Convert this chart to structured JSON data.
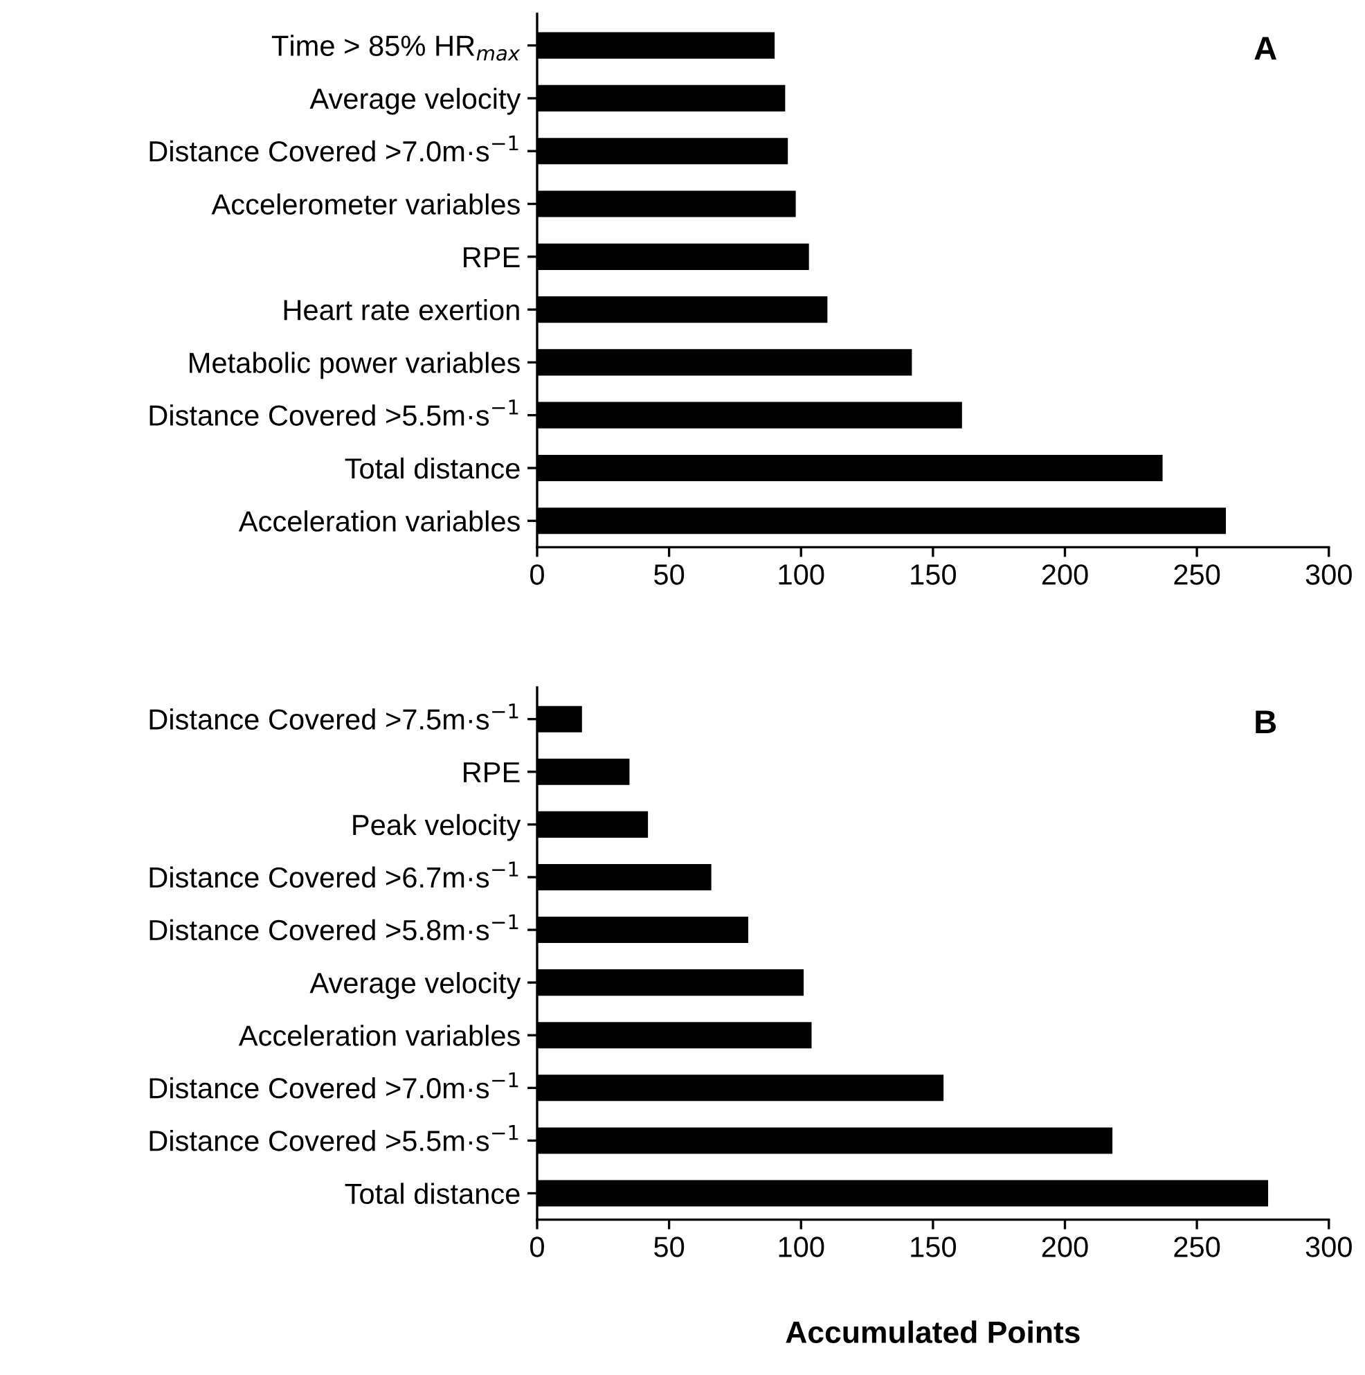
{
  "chart_data": [
    {
      "type": "bar",
      "orientation": "horizontal",
      "annotations": [
        "A"
      ],
      "categories": [
        "Time > 85% HR$_{max}$",
        "Average velocity",
        "Distance Covered >7.0m·s$^{−1}$",
        "Accelerometer variables",
        "RPE",
        "Heart rate exertion",
        "Metabolic power variables",
        "Distance Covered >5.5m·s$^{−1}$",
        "Total distance",
        "Acceleration variables"
      ],
      "values": [
        90,
        94,
        95,
        98,
        103,
        110,
        142,
        161,
        237,
        261
      ],
      "color": "#000000",
      "xlim": [
        0,
        300
      ],
      "xticks": [
        0,
        50,
        100,
        150,
        200,
        250,
        300
      ],
      "grid": false,
      "legend": false
    },
    {
      "type": "bar",
      "orientation": "horizontal",
      "annotations": [
        "B"
      ],
      "xlabel": "Accumulated Points",
      "categories": [
        "Distance Covered >7.5m·s$^{−1}$",
        "RPE",
        "Peak velocity",
        "Distance Covered >6.7m·s$^{−1}$",
        "Distance Covered >5.8m·s$^{−1}$",
        "Average velocity",
        "Acceleration variables",
        "Distance Covered >7.0m·s$^{−1}$",
        "Distance Covered >5.5m·s$^{−1}$",
        "Total distance"
      ],
      "values": [
        17,
        35,
        42,
        66,
        80,
        101,
        104,
        154,
        218,
        277
      ],
      "color": "#000000",
      "xlim": [
        0,
        300
      ],
      "xticks": [
        0,
        50,
        100,
        150,
        200,
        250,
        300
      ],
      "grid": false,
      "legend": false
    }
  ]
}
